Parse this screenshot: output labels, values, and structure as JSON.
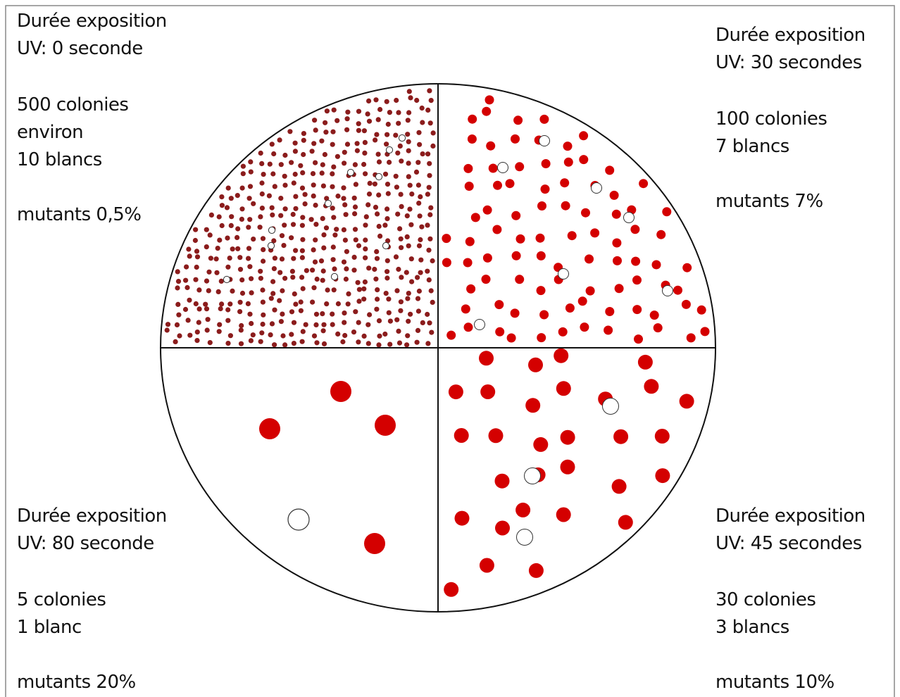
{
  "panels": [
    {
      "exposure": [
        "Durée exposition",
        "UV: 0 seconde"
      ],
      "counts": [
        "500 colonies",
        "environ",
        "10 blancs"
      ],
      "mutants": "mutants 0,5%"
    },
    {
      "exposure": [
        "Durée exposition",
        "UV: 30 secondes"
      ],
      "counts": [
        "100 colonies",
        "7 blancs"
      ],
      "mutants": "mutants 7%"
    },
    {
      "exposure": [
        "Durée exposition",
        "UV: 80 seconde"
      ],
      "counts": [
        "5 colonies",
        "1 blanc"
      ],
      "mutants": "mutants 20%"
    },
    {
      "exposure": [
        "Durée exposition",
        "UV: 45 secondes"
      ],
      "counts": [
        "30 colonies",
        "3 blancs"
      ],
      "mutants": "mutants 10%"
    }
  ]
}
